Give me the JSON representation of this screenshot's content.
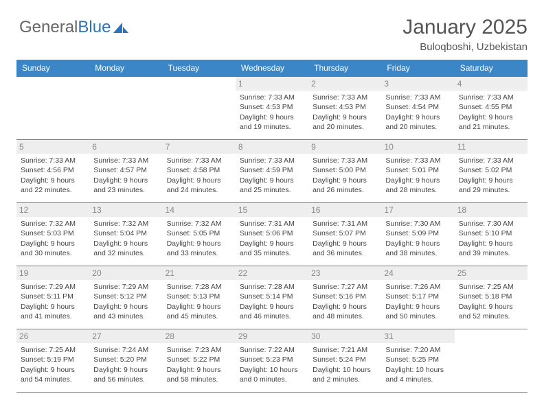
{
  "logo": {
    "text1": "General",
    "text2": "Blue"
  },
  "header": {
    "title": "January 2025",
    "location": "Buloqboshi, Uzbekistan"
  },
  "colors": {
    "header_bg": "#3b86c7",
    "header_text": "#ffffff",
    "border": "#3b86c7",
    "daynum_bg": "#eeeeee",
    "daynum_text": "#888888",
    "body_text": "#444444",
    "title_text": "#555555"
  },
  "daynames": [
    "Sunday",
    "Monday",
    "Tuesday",
    "Wednesday",
    "Thursday",
    "Friday",
    "Saturday"
  ],
  "weeks": [
    [
      {
        "n": "",
        "lines": []
      },
      {
        "n": "",
        "lines": []
      },
      {
        "n": "",
        "lines": []
      },
      {
        "n": "1",
        "lines": [
          "Sunrise: 7:33 AM",
          "Sunset: 4:53 PM",
          "Daylight: 9 hours and 19 minutes."
        ]
      },
      {
        "n": "2",
        "lines": [
          "Sunrise: 7:33 AM",
          "Sunset: 4:53 PM",
          "Daylight: 9 hours and 20 minutes."
        ]
      },
      {
        "n": "3",
        "lines": [
          "Sunrise: 7:33 AM",
          "Sunset: 4:54 PM",
          "Daylight: 9 hours and 20 minutes."
        ]
      },
      {
        "n": "4",
        "lines": [
          "Sunrise: 7:33 AM",
          "Sunset: 4:55 PM",
          "Daylight: 9 hours and 21 minutes."
        ]
      }
    ],
    [
      {
        "n": "5",
        "lines": [
          "Sunrise: 7:33 AM",
          "Sunset: 4:56 PM",
          "Daylight: 9 hours and 22 minutes."
        ]
      },
      {
        "n": "6",
        "lines": [
          "Sunrise: 7:33 AM",
          "Sunset: 4:57 PM",
          "Daylight: 9 hours and 23 minutes."
        ]
      },
      {
        "n": "7",
        "lines": [
          "Sunrise: 7:33 AM",
          "Sunset: 4:58 PM",
          "Daylight: 9 hours and 24 minutes."
        ]
      },
      {
        "n": "8",
        "lines": [
          "Sunrise: 7:33 AM",
          "Sunset: 4:59 PM",
          "Daylight: 9 hours and 25 minutes."
        ]
      },
      {
        "n": "9",
        "lines": [
          "Sunrise: 7:33 AM",
          "Sunset: 5:00 PM",
          "Daylight: 9 hours and 26 minutes."
        ]
      },
      {
        "n": "10",
        "lines": [
          "Sunrise: 7:33 AM",
          "Sunset: 5:01 PM",
          "Daylight: 9 hours and 28 minutes."
        ]
      },
      {
        "n": "11",
        "lines": [
          "Sunrise: 7:33 AM",
          "Sunset: 5:02 PM",
          "Daylight: 9 hours and 29 minutes."
        ]
      }
    ],
    [
      {
        "n": "12",
        "lines": [
          "Sunrise: 7:32 AM",
          "Sunset: 5:03 PM",
          "Daylight: 9 hours and 30 minutes."
        ]
      },
      {
        "n": "13",
        "lines": [
          "Sunrise: 7:32 AM",
          "Sunset: 5:04 PM",
          "Daylight: 9 hours and 32 minutes."
        ]
      },
      {
        "n": "14",
        "lines": [
          "Sunrise: 7:32 AM",
          "Sunset: 5:05 PM",
          "Daylight: 9 hours and 33 minutes."
        ]
      },
      {
        "n": "15",
        "lines": [
          "Sunrise: 7:31 AM",
          "Sunset: 5:06 PM",
          "Daylight: 9 hours and 35 minutes."
        ]
      },
      {
        "n": "16",
        "lines": [
          "Sunrise: 7:31 AM",
          "Sunset: 5:07 PM",
          "Daylight: 9 hours and 36 minutes."
        ]
      },
      {
        "n": "17",
        "lines": [
          "Sunrise: 7:30 AM",
          "Sunset: 5:09 PM",
          "Daylight: 9 hours and 38 minutes."
        ]
      },
      {
        "n": "18",
        "lines": [
          "Sunrise: 7:30 AM",
          "Sunset: 5:10 PM",
          "Daylight: 9 hours and 39 minutes."
        ]
      }
    ],
    [
      {
        "n": "19",
        "lines": [
          "Sunrise: 7:29 AM",
          "Sunset: 5:11 PM",
          "Daylight: 9 hours and 41 minutes."
        ]
      },
      {
        "n": "20",
        "lines": [
          "Sunrise: 7:29 AM",
          "Sunset: 5:12 PM",
          "Daylight: 9 hours and 43 minutes."
        ]
      },
      {
        "n": "21",
        "lines": [
          "Sunrise: 7:28 AM",
          "Sunset: 5:13 PM",
          "Daylight: 9 hours and 45 minutes."
        ]
      },
      {
        "n": "22",
        "lines": [
          "Sunrise: 7:28 AM",
          "Sunset: 5:14 PM",
          "Daylight: 9 hours and 46 minutes."
        ]
      },
      {
        "n": "23",
        "lines": [
          "Sunrise: 7:27 AM",
          "Sunset: 5:16 PM",
          "Daylight: 9 hours and 48 minutes."
        ]
      },
      {
        "n": "24",
        "lines": [
          "Sunrise: 7:26 AM",
          "Sunset: 5:17 PM",
          "Daylight: 9 hours and 50 minutes."
        ]
      },
      {
        "n": "25",
        "lines": [
          "Sunrise: 7:25 AM",
          "Sunset: 5:18 PM",
          "Daylight: 9 hours and 52 minutes."
        ]
      }
    ],
    [
      {
        "n": "26",
        "lines": [
          "Sunrise: 7:25 AM",
          "Sunset: 5:19 PM",
          "Daylight: 9 hours and 54 minutes."
        ]
      },
      {
        "n": "27",
        "lines": [
          "Sunrise: 7:24 AM",
          "Sunset: 5:20 PM",
          "Daylight: 9 hours and 56 minutes."
        ]
      },
      {
        "n": "28",
        "lines": [
          "Sunrise: 7:23 AM",
          "Sunset: 5:22 PM",
          "Daylight: 9 hours and 58 minutes."
        ]
      },
      {
        "n": "29",
        "lines": [
          "Sunrise: 7:22 AM",
          "Sunset: 5:23 PM",
          "Daylight: 10 hours and 0 minutes."
        ]
      },
      {
        "n": "30",
        "lines": [
          "Sunrise: 7:21 AM",
          "Sunset: 5:24 PM",
          "Daylight: 10 hours and 2 minutes."
        ]
      },
      {
        "n": "31",
        "lines": [
          "Sunrise: 7:20 AM",
          "Sunset: 5:25 PM",
          "Daylight: 10 hours and 4 minutes."
        ]
      },
      {
        "n": "",
        "lines": []
      }
    ]
  ]
}
